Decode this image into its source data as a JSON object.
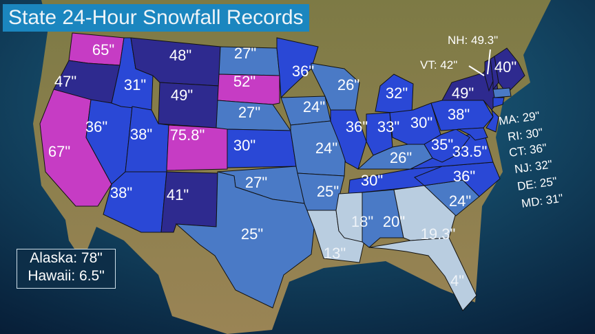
{
  "title": "State 24-Hour Snowfall Records",
  "colors": {
    "magenta": "#c63cc4",
    "navy": "#2e2a8f",
    "blue": "#2a48d6",
    "steel": "#4a7ac6",
    "light": "#b9cde0",
    "ocean": "#0c3a5e",
    "land": "#8a7a4a"
  },
  "states": {
    "WA": {
      "label": "65\"",
      "color": "magenta"
    },
    "OR": {
      "label": "47\"",
      "color": "navy"
    },
    "CA": {
      "label": "67\"",
      "color": "magenta"
    },
    "NV": {
      "label": "36\"",
      "color": "blue"
    },
    "ID": {
      "label": "31\"",
      "color": "blue"
    },
    "MT": {
      "label": "48\"",
      "color": "navy"
    },
    "WY": {
      "label": "49\"",
      "color": "navy"
    },
    "UT": {
      "label": "38\"",
      "color": "blue"
    },
    "CO": {
      "label": "75.8\"",
      "color": "magenta"
    },
    "AZ": {
      "label": "38\"",
      "color": "blue"
    },
    "NM": {
      "label": "41\"",
      "color": "navy"
    },
    "ND": {
      "label": "27\"",
      "color": "steel"
    },
    "SD": {
      "label": "52\"",
      "color": "magenta"
    },
    "NE": {
      "label": "27\"",
      "color": "steel"
    },
    "KS": {
      "label": "30\"",
      "color": "blue"
    },
    "OK": {
      "label": "27\"",
      "color": "steel"
    },
    "TX": {
      "label": "25\"",
      "color": "steel"
    },
    "MN": {
      "label": "36\"",
      "color": "blue"
    },
    "IA": {
      "label": "24\"",
      "color": "steel"
    },
    "MO": {
      "label": "24\"",
      "color": "steel"
    },
    "AR": {
      "label": "25\"",
      "color": "steel"
    },
    "LA": {
      "label": "13\"",
      "color": "light"
    },
    "WI": {
      "label": "26\"",
      "color": "steel"
    },
    "MI": {
      "label": "32\"",
      "color": "blue"
    },
    "IL": {
      "label": "36\"",
      "color": "blue"
    },
    "IN": {
      "label": "33\"",
      "color": "blue"
    },
    "OH": {
      "label": "30\"",
      "color": "blue"
    },
    "KY": {
      "label": "26\"",
      "color": "steel"
    },
    "TN": {
      "label": "30\"",
      "color": "blue"
    },
    "MS": {
      "label": "18\"",
      "color": "light"
    },
    "AL": {
      "label": "20\"",
      "color": "steel"
    },
    "GA": {
      "label": "19.3\"",
      "color": "light"
    },
    "FL": {
      "label": "4\"",
      "color": "light"
    },
    "SC": {
      "label": "24\"",
      "color": "steel"
    },
    "NC": {
      "label": "36\"",
      "color": "blue"
    },
    "VA": {
      "label": "33.5\"",
      "color": "blue"
    },
    "WV": {
      "label": "35\"",
      "color": "blue"
    },
    "PA": {
      "label": "38\"",
      "color": "blue"
    },
    "NY": {
      "label": "49\"",
      "color": "navy"
    },
    "ME": {
      "label": "40\"",
      "color": "navy"
    },
    "VT": {
      "color": "navy"
    },
    "NH": {
      "color": "navy"
    },
    "MA": {
      "color": "steel"
    },
    "CT": {
      "color": "blue"
    },
    "NJ": {
      "color": "blue"
    },
    "MD": {
      "color": "blue"
    }
  },
  "callouts": {
    "NH": "NH: 49.3\"",
    "VT": "VT: 42\"",
    "MA": "MA: 29\"",
    "RI": "RI: 30\"",
    "CT": "CT: 36\"",
    "NJ": "NJ: 32\"",
    "DE": "DE: 25\"",
    "MD": "MD: 31\""
  },
  "inset": {
    "alaska": "Alaska: 78\"",
    "hawaii": "Hawaii: 6.5\""
  }
}
